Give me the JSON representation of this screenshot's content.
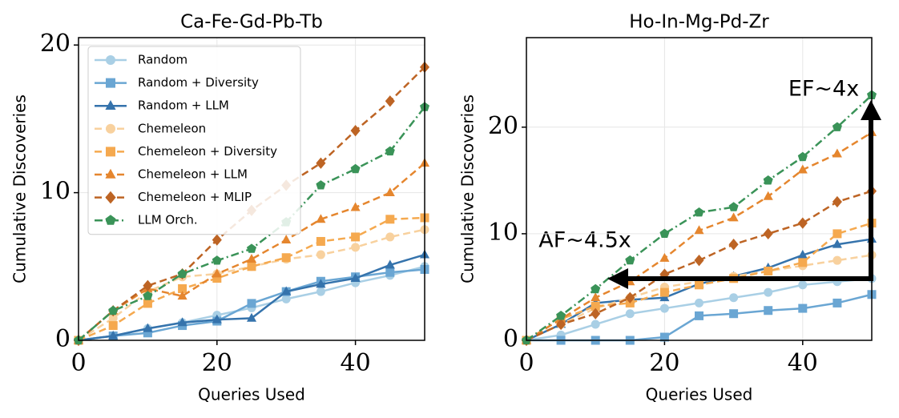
{
  "chart_data": [
    {
      "type": "line",
      "title": "Ca-Fe-Gd-Pb-Tb",
      "xlabel": "Queries Used",
      "ylabel": "Cumulative Discoveries",
      "x": [
        0,
        5,
        10,
        15,
        20,
        25,
        30,
        35,
        40,
        45,
        50
      ],
      "xlim": [
        0,
        50
      ],
      "ylim": [
        0,
        20.5
      ],
      "xticks": [
        0,
        20,
        40
      ],
      "yticks": [
        0,
        10,
        20
      ],
      "grid": true,
      "legend": "upper left",
      "series": [
        {
          "name": "Random",
          "color": "#a9cfe5",
          "marker": "circle",
          "dash": "solid",
          "values": [
            0,
            0.3,
            0.8,
            1.2,
            1.7,
            2.2,
            2.8,
            3.3,
            3.9,
            4.4,
            5
          ]
        },
        {
          "name": "Random + Diversity",
          "color": "#6aa6d3",
          "marker": "square",
          "dash": "solid",
          "values": [
            0,
            0.3,
            0.5,
            1,
            1.3,
            2.5,
            3.3,
            4,
            4.3,
            4.6,
            4.8
          ]
        },
        {
          "name": "Random + LLM",
          "color": "#3573ac",
          "marker": "triangle",
          "dash": "solid",
          "values": [
            0,
            0.3,
            0.8,
            1.2,
            1.4,
            1.5,
            3.3,
            3.8,
            4.2,
            5.1,
            5.8
          ]
        },
        {
          "name": "Chemeleon",
          "color": "#f8d19e",
          "marker": "circle",
          "dash": "dashed",
          "values": [
            0,
            1.5,
            3.3,
            4.3,
            4.5,
            5,
            5.5,
            5.8,
            6.3,
            7,
            7.5
          ]
        },
        {
          "name": "Chemeleon + Diversity",
          "color": "#f5a94f",
          "marker": "square",
          "dash": "dashed",
          "values": [
            0,
            1,
            2.5,
            3.5,
            4.2,
            5,
            5.6,
            6.7,
            7,
            8.2,
            8.3
          ]
        },
        {
          "name": "Chemeleon + LLM",
          "color": "#e5862e",
          "marker": "triangle",
          "dash": "dashed",
          "values": [
            0,
            2,
            3.5,
            3,
            4.5,
            5.5,
            6.8,
            8.2,
            9,
            10,
            12
          ]
        },
        {
          "name": "Chemeleon + MLIP",
          "color": "#bd6424",
          "marker": "diamond",
          "dash": "dashed",
          "values": [
            0,
            2,
            3.7,
            4.5,
            6.8,
            8.8,
            10.5,
            12,
            14.2,
            16.2,
            18.5
          ]
        },
        {
          "name": "LLM Orch.",
          "color": "#3a9358",
          "marker": "pentagon",
          "dash": "dashdot",
          "values": [
            0,
            2,
            3,
            4.5,
            5.4,
            6.2,
            8,
            10.5,
            11.6,
            12.8,
            15.8
          ]
        }
      ]
    },
    {
      "type": "line",
      "title": "Ho-In-Mg-Pd-Zr",
      "xlabel": "Queries Used",
      "ylabel": "Cumulative Discoveries",
      "x": [
        0,
        5,
        10,
        15,
        20,
        25,
        30,
        35,
        40,
        45,
        50
      ],
      "xlim": [
        0,
        50
      ],
      "ylim": [
        0,
        28.4
      ],
      "xticks": [
        0,
        20,
        40
      ],
      "yticks": [
        0,
        10,
        20
      ],
      "grid": true,
      "annotations": [
        "EF~4x",
        "AF~4.5x"
      ],
      "series": [
        {
          "name": "Random",
          "color": "#a9cfe5",
          "marker": "circle",
          "dash": "solid",
          "values": [
            0,
            0.5,
            1.5,
            2.5,
            3,
            3.5,
            4,
            4.5,
            5.2,
            5.5,
            5.8
          ]
        },
        {
          "name": "Random + Diversity",
          "color": "#6aa6d3",
          "marker": "square",
          "dash": "solid",
          "values": [
            0,
            0,
            0,
            0,
            0.3,
            2.3,
            2.5,
            2.8,
            3,
            3.5,
            4.3
          ]
        },
        {
          "name": "Random + LLM",
          "color": "#3573ac",
          "marker": "triangle",
          "dash": "solid",
          "values": [
            0,
            1.5,
            3.5,
            3.8,
            4,
            5.3,
            6,
            6.8,
            8,
            9,
            9.5
          ]
        },
        {
          "name": "Chemeleon",
          "color": "#f8d19e",
          "marker": "circle",
          "dash": "dashed",
          "values": [
            0,
            1.5,
            3,
            4,
            5,
            5.5,
            6,
            6.5,
            7,
            7.5,
            8
          ]
        },
        {
          "name": "Chemeleon + Diversity",
          "color": "#f5a94f",
          "marker": "square",
          "dash": "dashed",
          "values": [
            0,
            2,
            3.2,
            3.5,
            4.5,
            5.2,
            5.8,
            6.5,
            7.3,
            10,
            11
          ]
        },
        {
          "name": "Chemeleon + LLM",
          "color": "#e5862e",
          "marker": "triangle",
          "dash": "dashed",
          "values": [
            0,
            2,
            4,
            5.5,
            7.7,
            10.3,
            11.5,
            13.5,
            16,
            17.5,
            19.5
          ]
        },
        {
          "name": "Chemeleon + MLIP",
          "color": "#bd6424",
          "marker": "diamond",
          "dash": "dashed",
          "values": [
            0,
            1.5,
            2.5,
            4,
            6.2,
            7.5,
            9,
            10,
            11,
            13,
            14
          ]
        },
        {
          "name": "LLM Orch.",
          "color": "#3a9358",
          "marker": "pentagon",
          "dash": "dashdot",
          "values": [
            0,
            2.3,
            4.8,
            7.5,
            10,
            12,
            12.5,
            15,
            17.2,
            20,
            23
          ]
        }
      ]
    }
  ]
}
